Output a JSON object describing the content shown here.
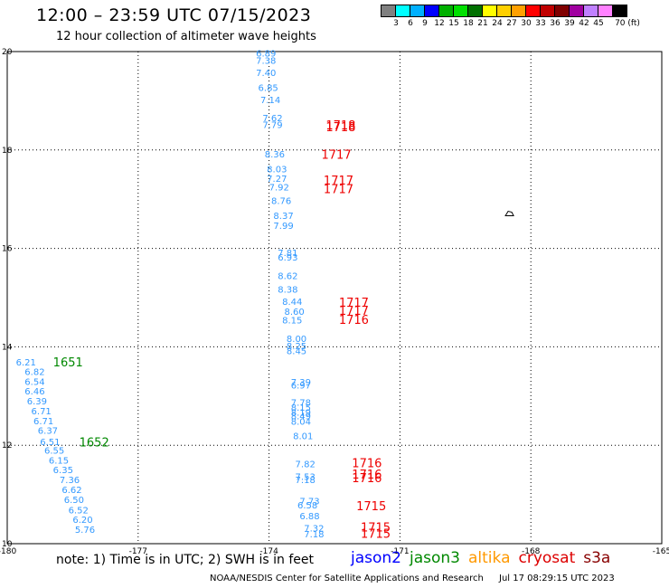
{
  "header": {
    "title": "12:00 – 23:59 UTC 07/15/2023",
    "subtitle": "12 hour collection of altimeter wave heights"
  },
  "colorbar": {
    "colors": [
      "#808080",
      "#00ffff",
      "#00b0ff",
      "#0000ff",
      "#00b000",
      "#00e000",
      "#007000",
      "#ffff00",
      "#ffd000",
      "#ffa000",
      "#ff0000",
      "#c00000",
      "#800000",
      "#a000a0",
      "#c080ff",
      "#ff80ff",
      "#000000"
    ],
    "labels": [
      "3",
      "6",
      "9",
      "12",
      "15",
      "18",
      "21",
      "24",
      "27",
      "30",
      "33",
      "36",
      "39",
      "42",
      "45",
      "70 (ft)"
    ]
  },
  "chart_data": {
    "type": "scatter",
    "xlim": [
      -180,
      -165
    ],
    "ylim": [
      10,
      20
    ],
    "x_ticks": [
      "-180",
      "-177",
      "-174",
      "-171",
      "-168",
      "-165"
    ],
    "y_ticks": [
      "20",
      "18",
      "16",
      "14",
      "12",
      "10"
    ],
    "grid": true,
    "swh_labels": [
      {
        "lon": -174.3,
        "lat": 19.9,
        "text": "6.89",
        "color": "#3399ff"
      },
      {
        "lon": -174.3,
        "lat": 19.75,
        "text": "7.38",
        "color": "#3399ff"
      },
      {
        "lon": -174.3,
        "lat": 19.5,
        "text": "7.40",
        "color": "#3399ff"
      },
      {
        "lon": -174.25,
        "lat": 19.2,
        "text": "6.85",
        "color": "#3399ff"
      },
      {
        "lon": -174.2,
        "lat": 18.95,
        "text": "7.14",
        "color": "#3399ff"
      },
      {
        "lon": -174.15,
        "lat": 18.58,
        "text": "7.62",
        "color": "#3399ff"
      },
      {
        "lon": -174.15,
        "lat": 18.45,
        "text": "7.79",
        "color": "#3399ff"
      },
      {
        "lon": -174.1,
        "lat": 17.85,
        "text": "8.36",
        "color": "#3399ff"
      },
      {
        "lon": -174.05,
        "lat": 17.55,
        "text": "8.03",
        "color": "#3399ff"
      },
      {
        "lon": -174.05,
        "lat": 17.35,
        "text": "7.27",
        "color": "#3399ff"
      },
      {
        "lon": -174.0,
        "lat": 17.18,
        "text": "7.92",
        "color": "#3399ff"
      },
      {
        "lon": -173.95,
        "lat": 16.9,
        "text": "8.76",
        "color": "#3399ff"
      },
      {
        "lon": -173.9,
        "lat": 16.6,
        "text": "8.37",
        "color": "#3399ff"
      },
      {
        "lon": -173.9,
        "lat": 16.4,
        "text": "7.99",
        "color": "#3399ff"
      },
      {
        "lon": -173.8,
        "lat": 15.85,
        "text": "7.81",
        "color": "#3399ff"
      },
      {
        "lon": -173.8,
        "lat": 15.75,
        "text": "6.93",
        "color": "#3399ff"
      },
      {
        "lon": -173.8,
        "lat": 15.38,
        "text": "8.62",
        "color": "#3399ff"
      },
      {
        "lon": -173.8,
        "lat": 15.1,
        "text": "8.38",
        "color": "#3399ff"
      },
      {
        "lon": -173.7,
        "lat": 14.85,
        "text": "8.44",
        "color": "#3399ff"
      },
      {
        "lon": -173.65,
        "lat": 14.65,
        "text": "8.60",
        "color": "#3399ff"
      },
      {
        "lon": -173.7,
        "lat": 14.48,
        "text": "8.15",
        "color": "#3399ff"
      },
      {
        "lon": -173.6,
        "lat": 14.1,
        "text": "8.00",
        "color": "#3399ff"
      },
      {
        "lon": -173.6,
        "lat": 13.95,
        "text": "8.25",
        "color": "#3399ff"
      },
      {
        "lon": -173.6,
        "lat": 13.85,
        "text": "8.45",
        "color": "#3399ff"
      },
      {
        "lon": -173.5,
        "lat": 13.22,
        "text": "7.39",
        "color": "#3399ff"
      },
      {
        "lon": -173.5,
        "lat": 13.15,
        "text": "6.97",
        "color": "#3399ff"
      },
      {
        "lon": -173.5,
        "lat": 12.8,
        "text": "7.78",
        "color": "#3399ff"
      },
      {
        "lon": -173.5,
        "lat": 12.7,
        "text": "8.15",
        "color": "#3399ff"
      },
      {
        "lon": -173.5,
        "lat": 12.6,
        "text": "8.19",
        "color": "#3399ff"
      },
      {
        "lon": -173.5,
        "lat": 12.53,
        "text": "8.49",
        "color": "#3399ff"
      },
      {
        "lon": -173.5,
        "lat": 12.42,
        "text": "8.04",
        "color": "#3399ff"
      },
      {
        "lon": -173.45,
        "lat": 12.12,
        "text": "8.01",
        "color": "#3399ff"
      },
      {
        "lon": -173.4,
        "lat": 11.55,
        "text": "7.82",
        "color": "#3399ff"
      },
      {
        "lon": -173.4,
        "lat": 11.3,
        "text": "7.53",
        "color": "#3399ff"
      },
      {
        "lon": -173.4,
        "lat": 11.23,
        "text": "7.18",
        "color": "#3399ff"
      },
      {
        "lon": -173.3,
        "lat": 10.8,
        "text": "7.73",
        "color": "#3399ff"
      },
      {
        "lon": -173.35,
        "lat": 10.72,
        "text": "6.58",
        "color": "#3399ff"
      },
      {
        "lon": -173.3,
        "lat": 10.5,
        "text": "6.88",
        "color": "#3399ff"
      },
      {
        "lon": -173.2,
        "lat": 10.25,
        "text": "7.32",
        "color": "#3399ff"
      },
      {
        "lon": -173.2,
        "lat": 10.13,
        "text": "7.18",
        "color": "#3399ff"
      },
      {
        "lon": -179.8,
        "lat": 13.62,
        "text": "6.21",
        "color": "#3399ff"
      },
      {
        "lon": -179.6,
        "lat": 13.43,
        "text": "6.82",
        "color": "#3399ff"
      },
      {
        "lon": -179.6,
        "lat": 13.23,
        "text": "6.54",
        "color": "#3399ff"
      },
      {
        "lon": -179.6,
        "lat": 13.03,
        "text": "6.46",
        "color": "#3399ff"
      },
      {
        "lon": -179.55,
        "lat": 12.83,
        "text": "6.39",
        "color": "#3399ff"
      },
      {
        "lon": -179.45,
        "lat": 12.63,
        "text": "6.71",
        "color": "#3399ff"
      },
      {
        "lon": -179.4,
        "lat": 12.43,
        "text": "6.71",
        "color": "#3399ff"
      },
      {
        "lon": -179.3,
        "lat": 12.23,
        "text": "6.37",
        "color": "#3399ff"
      },
      {
        "lon": -179.25,
        "lat": 12.0,
        "text": "6.51",
        "color": "#3399ff"
      },
      {
        "lon": -179.15,
        "lat": 11.83,
        "text": "6.55",
        "color": "#3399ff"
      },
      {
        "lon": -179.05,
        "lat": 11.63,
        "text": "6.15",
        "color": "#3399ff"
      },
      {
        "lon": -178.95,
        "lat": 11.43,
        "text": "6.35",
        "color": "#3399ff"
      },
      {
        "lon": -178.8,
        "lat": 11.23,
        "text": "7.36",
        "color": "#3399ff"
      },
      {
        "lon": -178.75,
        "lat": 11.03,
        "text": "6.62",
        "color": "#3399ff"
      },
      {
        "lon": -178.7,
        "lat": 10.83,
        "text": "6.50",
        "color": "#3399ff"
      },
      {
        "lon": -178.6,
        "lat": 10.62,
        "text": "6.52",
        "color": "#3399ff"
      },
      {
        "lon": -178.5,
        "lat": 10.42,
        "text": "6.20",
        "color": "#3399ff"
      },
      {
        "lon": -178.45,
        "lat": 10.22,
        "text": "5.76",
        "color": "#3399ff"
      }
    ],
    "time_labels": [
      {
        "lon": -172.7,
        "lat": 18.42,
        "text": "1718",
        "color": "#ee0000"
      },
      {
        "lon": -172.7,
        "lat": 18.38,
        "text": "1718",
        "color": "#ee0000"
      },
      {
        "lon": -172.8,
        "lat": 17.82,
        "text": "1717",
        "color": "#ee0000"
      },
      {
        "lon": -172.75,
        "lat": 17.3,
        "text": "1717",
        "color": "#ee0000"
      },
      {
        "lon": -172.75,
        "lat": 17.12,
        "text": "1717",
        "color": "#ee0000"
      },
      {
        "lon": -172.4,
        "lat": 14.82,
        "text": "1717",
        "color": "#ee0000"
      },
      {
        "lon": -172.4,
        "lat": 14.65,
        "text": "1717",
        "color": "#ee0000"
      },
      {
        "lon": -172.4,
        "lat": 14.47,
        "text": "1716",
        "color": "#ee0000"
      },
      {
        "lon": -172.1,
        "lat": 11.55,
        "text": "1716",
        "color": "#ee0000"
      },
      {
        "lon": -172.1,
        "lat": 11.32,
        "text": "1716",
        "color": "#ee0000"
      },
      {
        "lon": -172.1,
        "lat": 11.25,
        "text": "1716",
        "color": "#ee0000"
      },
      {
        "lon": -172.0,
        "lat": 10.68,
        "text": "1715",
        "color": "#ee0000"
      },
      {
        "lon": -171.9,
        "lat": 10.25,
        "text": "1715",
        "color": "#ee0000"
      },
      {
        "lon": -171.9,
        "lat": 10.12,
        "text": "1715",
        "color": "#ee0000"
      },
      {
        "lon": -178.95,
        "lat": 13.6,
        "text": "1651",
        "color": "#008800"
      },
      {
        "lon": -178.35,
        "lat": 11.98,
        "text": "1652",
        "color": "#008800"
      }
    ],
    "island_marker": {
      "lon": -168.5,
      "lat": 16.7
    }
  },
  "footer": {
    "note": "note:  1) Time is in UTC;  2) SWH is in feet",
    "credit": "NOAA/NESDIS Center for Satellite Applications and Research",
    "datestamp": "Jul 17 08:29:15 UTC 2023",
    "legend": [
      {
        "name": "jason2",
        "color": "#0000ff"
      },
      {
        "name": "jason3",
        "color": "#008800"
      },
      {
        "name": "altika",
        "color": "#ff9900"
      },
      {
        "name": "cryosat",
        "color": "#dd0000"
      },
      {
        "name": "s3a",
        "color": "#880000"
      }
    ]
  }
}
